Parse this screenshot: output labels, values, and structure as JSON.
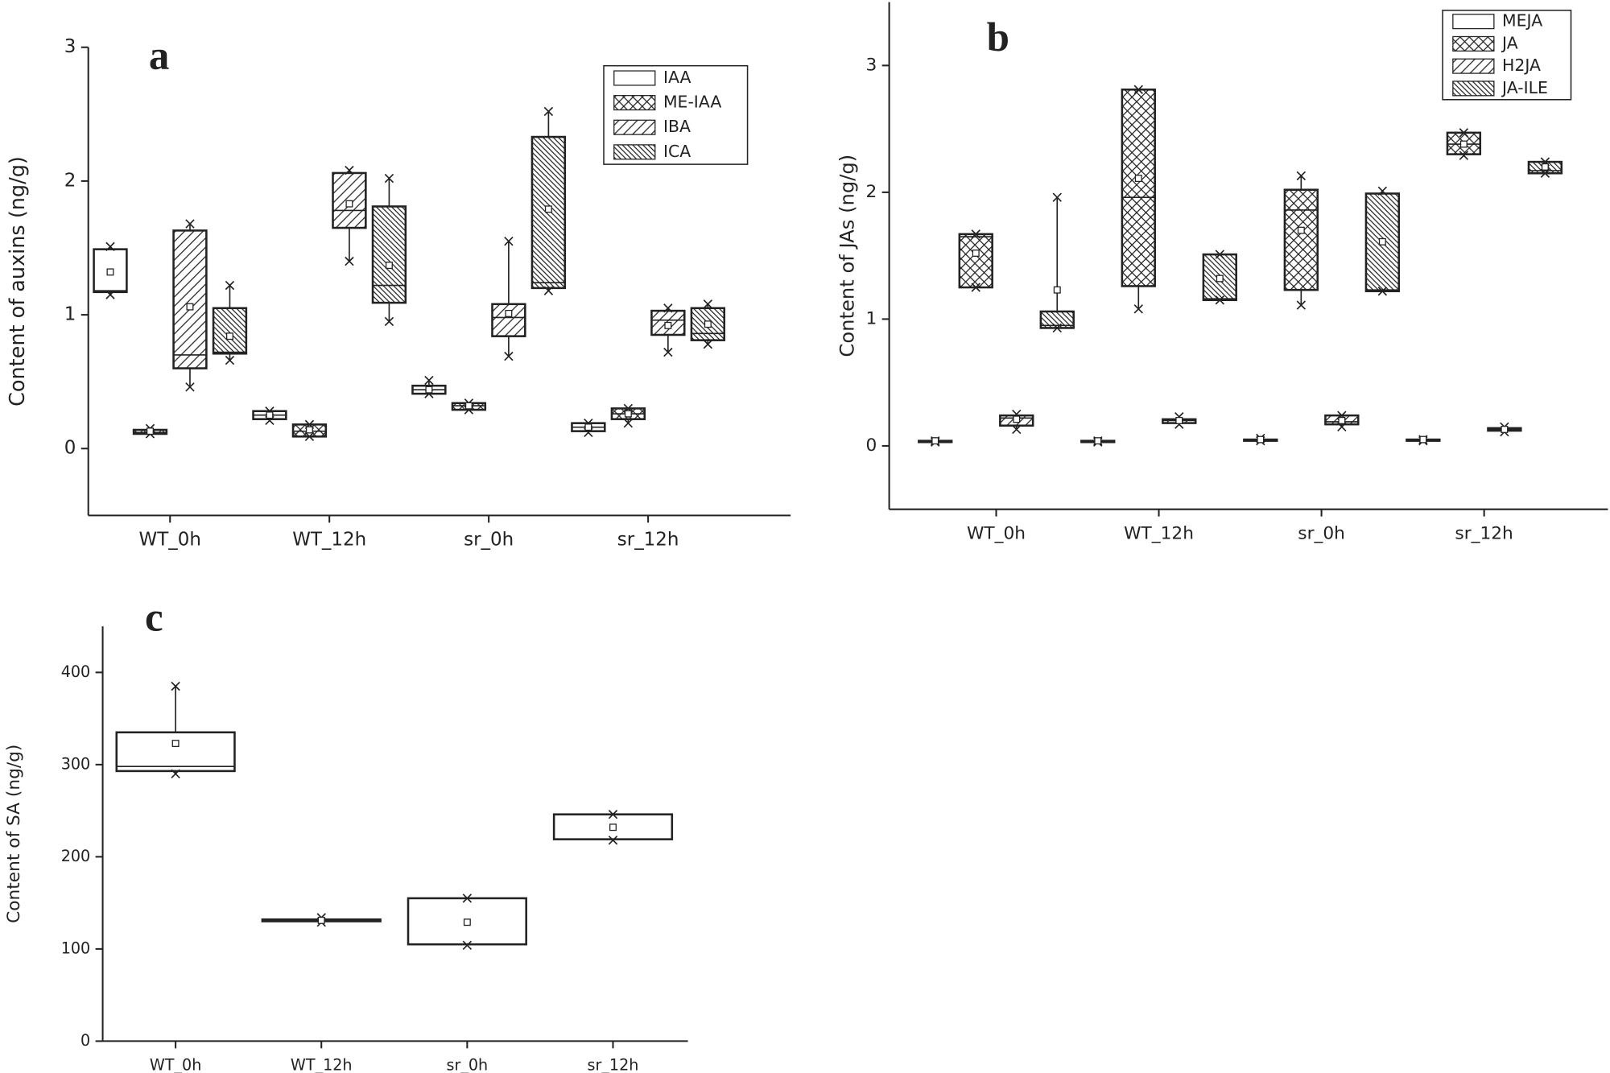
{
  "chart_data": [
    {
      "type": "box",
      "panel_label": "a",
      "ylabel": "Content of auxins (ng/g)",
      "categories": [
        "WT_0h",
        "WT_12h",
        "sr_0h",
        "sr_12h"
      ],
      "ylim": [
        -0.5,
        3
      ],
      "yticks": [
        0,
        1,
        2,
        3
      ],
      "series": [
        {
          "name": "IAA",
          "pattern": "none",
          "boxes": [
            {
              "min": 1.15,
              "q1": 1.17,
              "median": 1.18,
              "q3": 1.49,
              "max": 1.51,
              "mean": 1.32
            },
            {
              "min": 0.21,
              "q1": 0.22,
              "median": 0.25,
              "q3": 0.28,
              "max": 0.28,
              "mean": 0.25
            },
            {
              "min": 0.41,
              "q1": 0.41,
              "median": 0.44,
              "q3": 0.47,
              "max": 0.51,
              "mean": 0.44
            },
            {
              "min": 0.12,
              "q1": 0.13,
              "median": 0.16,
              "q3": 0.19,
              "max": 0.19,
              "mean": 0.16
            }
          ]
        },
        {
          "name": "ME-IAA",
          "pattern": "cross",
          "boxes": [
            {
              "min": 0.11,
              "q1": 0.11,
              "median": 0.12,
              "q3": 0.14,
              "max": 0.15,
              "mean": 0.13
            },
            {
              "min": 0.09,
              "q1": 0.09,
              "median": 0.13,
              "q3": 0.18,
              "max": 0.18,
              "mean": 0.14
            },
            {
              "min": 0.29,
              "q1": 0.29,
              "median": 0.32,
              "q3": 0.34,
              "max": 0.34,
              "mean": 0.32
            },
            {
              "min": 0.19,
              "q1": 0.22,
              "median": 0.26,
              "q3": 0.3,
              "max": 0.3,
              "mean": 0.26
            }
          ]
        },
        {
          "name": "IBA",
          "pattern": "slash",
          "boxes": [
            {
              "min": 0.46,
              "q1": 0.6,
              "median": 0.7,
              "q3": 1.63,
              "max": 1.68,
              "mean": 1.06
            },
            {
              "min": 1.4,
              "q1": 1.65,
              "median": 1.78,
              "q3": 2.06,
              "max": 2.08,
              "mean": 1.83
            },
            {
              "min": 0.69,
              "q1": 0.84,
              "median": 0.98,
              "q3": 1.08,
              "max": 1.55,
              "mean": 1.01
            },
            {
              "min": 0.72,
              "q1": 0.85,
              "median": 0.96,
              "q3": 1.03,
              "max": 1.05,
              "mean": 0.92
            }
          ]
        },
        {
          "name": "ICA",
          "pattern": "backslash",
          "boxes": [
            {
              "min": 0.66,
              "q1": 0.71,
              "median": 0.72,
              "q3": 1.05,
              "max": 1.22,
              "mean": 0.84
            },
            {
              "min": 0.95,
              "q1": 1.09,
              "median": 1.22,
              "q3": 1.81,
              "max": 2.02,
              "mean": 1.37
            },
            {
              "min": 1.18,
              "q1": 1.2,
              "median": 1.24,
              "q3": 2.33,
              "max": 2.52,
              "mean": 1.79
            },
            {
              "min": 0.78,
              "q1": 0.81,
              "median": 0.86,
              "q3": 1.05,
              "max": 1.08,
              "mean": 0.93
            }
          ]
        }
      ]
    },
    {
      "type": "box",
      "panel_label": "b",
      "ylabel": "Content of JAs (ng/g)",
      "categories": [
        "WT_0h",
        "WT_12h",
        "sr_0h",
        "sr_12h"
      ],
      "ylim": [
        -0.5,
        3.5
      ],
      "yticks": [
        0,
        1,
        2,
        3
      ],
      "series": [
        {
          "name": "MEJA",
          "pattern": "none",
          "boxes": [
            {
              "min": 0.03,
              "q1": 0.03,
              "median": 0.04,
              "q3": 0.04,
              "max": 0.04,
              "mean": 0.04
            },
            {
              "min": 0.03,
              "q1": 0.03,
              "median": 0.04,
              "q3": 0.04,
              "max": 0.04,
              "mean": 0.04
            },
            {
              "min": 0.04,
              "q1": 0.04,
              "median": 0.05,
              "q3": 0.05,
              "max": 0.06,
              "mean": 0.05
            },
            {
              "min": 0.04,
              "q1": 0.04,
              "median": 0.05,
              "q3": 0.05,
              "max": 0.05,
              "mean": 0.05
            }
          ]
        },
        {
          "name": "JA",
          "pattern": "cross",
          "boxes": [
            {
              "min": 1.25,
              "q1": 1.25,
              "median": 1.65,
              "q3": 1.67,
              "max": 1.67,
              "mean": 1.52
            },
            {
              "min": 1.08,
              "q1": 1.26,
              "median": 1.96,
              "q3": 2.81,
              "max": 2.81,
              "mean": 2.11
            },
            {
              "min": 1.11,
              "q1": 1.23,
              "median": 1.86,
              "q3": 2.02,
              "max": 2.13,
              "mean": 1.7
            },
            {
              "min": 2.29,
              "q1": 2.3,
              "median": 2.38,
              "q3": 2.47,
              "max": 2.47,
              "mean": 2.38
            }
          ]
        },
        {
          "name": "H2JA",
          "pattern": "slash",
          "boxes": [
            {
              "min": 0.13,
              "q1": 0.16,
              "median": 0.22,
              "q3": 0.24,
              "max": 0.25,
              "mean": 0.21
            },
            {
              "min": 0.17,
              "q1": 0.18,
              "median": 0.2,
              "q3": 0.21,
              "max": 0.23,
              "mean": 0.2
            },
            {
              "min": 0.15,
              "q1": 0.17,
              "median": 0.19,
              "q3": 0.24,
              "max": 0.24,
              "mean": 0.2
            },
            {
              "min": 0.11,
              "q1": 0.12,
              "median": 0.13,
              "q3": 0.14,
              "max": 0.15,
              "mean": 0.13
            }
          ]
        },
        {
          "name": "JA-ILE",
          "pattern": "backslash",
          "boxes": [
            {
              "min": 0.93,
              "q1": 0.93,
              "median": 0.95,
              "q3": 1.06,
              "max": 1.96,
              "mean": 1.23
            },
            {
              "min": 1.15,
              "q1": 1.15,
              "median": 1.16,
              "q3": 1.51,
              "max": 1.51,
              "mean": 1.32
            },
            {
              "min": 1.22,
              "q1": 1.22,
              "median": 1.23,
              "q3": 1.99,
              "max": 2.01,
              "mean": 1.61
            },
            {
              "min": 2.15,
              "q1": 2.15,
              "median": 2.17,
              "q3": 2.24,
              "max": 2.24,
              "mean": 2.2
            }
          ]
        }
      ]
    },
    {
      "type": "box",
      "panel_label": "c",
      "ylabel": "Content of SA (ng/g)",
      "categories": [
        "WT_0h",
        "WT_12h",
        "sr_0h",
        "sr_12h"
      ],
      "ylim": [
        0,
        450
      ],
      "yticks": [
        0,
        100,
        200,
        300,
        400
      ],
      "series": [
        {
          "pattern": "none",
          "boxes": [
            {
              "min": 290,
              "q1": 293,
              "median": 298,
              "q3": 335,
              "max": 385,
              "mean": 323
            },
            {
              "min": 129,
              "q1": 130,
              "median": 131,
              "q3": 132,
              "max": 134,
              "mean": 131
            },
            {
              "min": 104,
              "q1": 105,
              "median": 105,
              "q3": 155,
              "max": 155,
              "mean": 129
            },
            {
              "min": 218,
              "q1": 219,
              "median": 219,
              "q3": 246,
              "max": 246,
              "mean": 232
            }
          ]
        }
      ]
    }
  ]
}
